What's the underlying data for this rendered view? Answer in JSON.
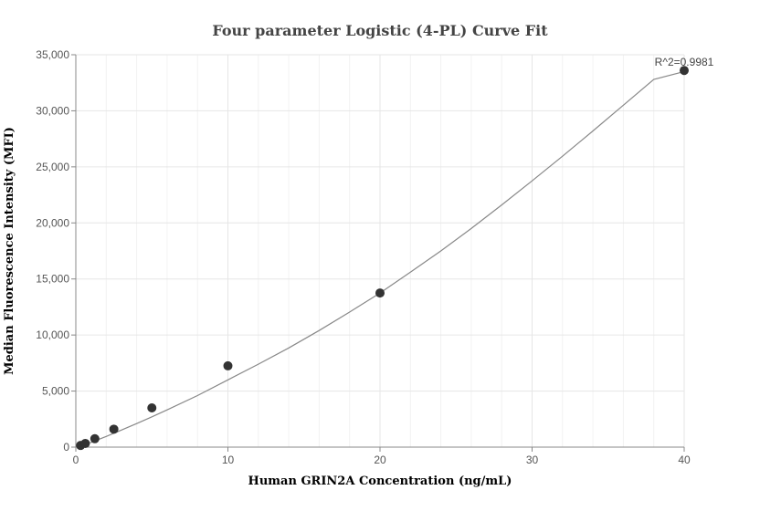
{
  "chart_data": {
    "type": "scatter",
    "title": "Four parameter Logistic (4-PL) Curve Fit",
    "xlabel": "Human GRIN2A Concentration (ng/mL)",
    "ylabel": "Median Fluorescence Intensity (MFI)",
    "xlim": [
      0,
      40
    ],
    "ylim": [
      0,
      35000
    ],
    "x_ticks": [
      0,
      10,
      20,
      30,
      40
    ],
    "x_tick_labels": [
      "0",
      "10",
      "20",
      "30",
      "40"
    ],
    "y_ticks": [
      0,
      5000,
      10000,
      15000,
      20000,
      25000,
      30000,
      35000
    ],
    "y_tick_labels": [
      "0",
      "5,000",
      "10,000",
      "15,000",
      "20,000",
      "25,000",
      "30,000",
      "35,000"
    ],
    "grid": true,
    "points": {
      "x": [
        0.3125,
        0.625,
        1.25,
        2.5,
        5,
        10,
        20,
        40
      ],
      "y": [
        150,
        330,
        750,
        1600,
        3500,
        7250,
        13750,
        33600
      ]
    },
    "fit_curve": {
      "x": [
        0,
        1,
        2,
        3,
        4,
        5,
        6,
        8,
        10,
        12,
        14,
        16,
        18,
        20,
        22,
        24,
        26,
        28,
        30,
        32,
        34,
        36,
        38,
        40
      ],
      "y": [
        0,
        420,
        950,
        1520,
        2100,
        2700,
        3320,
        4600,
        6000,
        7400,
        8850,
        10400,
        12050,
        13750,
        15600,
        17500,
        19500,
        21600,
        23750,
        25950,
        28200,
        30500,
        32800,
        33500
      ]
    },
    "annotation": "R^2=0.9981",
    "colors": {
      "points": "#333333",
      "curve": "#888888"
    }
  }
}
